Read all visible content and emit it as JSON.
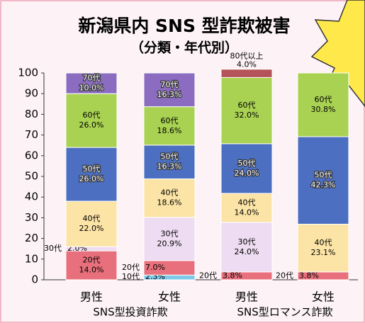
{
  "chart_data": {
    "type": "stacked_bar",
    "title": "新潟県内 SNS 型詐欺被害",
    "subtitle": "（分類・年代別）",
    "categories": [
      "男性",
      "女性",
      "男性",
      "女性"
    ],
    "x_groups": [
      "SNS型投資詐欺",
      "SNS型ロマンス詐欺"
    ],
    "ylim": [
      0,
      100
    ],
    "yticks": [
      0,
      10,
      20,
      30,
      40,
      50,
      60,
      70,
      80,
      90,
      100
    ],
    "series": [
      {
        "name": "10代",
        "color": "#7ec8e8",
        "values": [
          null,
          2.3,
          null,
          null
        ],
        "value_labels": [
          null,
          "2.3%",
          null,
          null
        ]
      },
      {
        "name": "20代",
        "color": "#e8707c",
        "values": [
          14.0,
          7.0,
          3.8,
          3.8
        ],
        "value_labels": [
          "14.0%",
          "7.0%",
          "3.8%",
          "3.8%"
        ]
      },
      {
        "name": "30代",
        "color": "#eedcf2",
        "values": [
          2.0,
          20.9,
          24.0,
          null
        ],
        "value_labels": [
          "2.0%",
          "20.9%",
          "24.0%",
          null
        ]
      },
      {
        "name": "40代",
        "color": "#fce4a6",
        "values": [
          22.0,
          18.6,
          14.0,
          23.1
        ],
        "value_labels": [
          "22.0%",
          "18.6%",
          "14.0%",
          "23.1%"
        ]
      },
      {
        "name": "50代",
        "color": "#4c6fc2",
        "values": [
          26.0,
          16.3,
          24.0,
          42.3
        ],
        "value_labels": [
          "26.0%",
          "16.3%",
          "24.0%",
          "42.3%"
        ]
      },
      {
        "name": "60代",
        "color": "#a9d152",
        "values": [
          26.0,
          18.6,
          32.0,
          30.8
        ],
        "value_labels": [
          "26.0%",
          "18.6%",
          "32.0%",
          "30.8%"
        ]
      },
      {
        "name": "70代",
        "color": "#8b6cc0",
        "values": [
          10.0,
          16.3,
          null,
          null
        ],
        "value_labels": [
          "10.0%",
          "16.3%",
          null,
          null
        ]
      },
      {
        "name": "80代以上",
        "color": "#b4545a",
        "values": [
          null,
          null,
          4.0,
          null
        ],
        "value_labels": [
          null,
          null,
          "4.0%",
          null
        ]
      }
    ]
  }
}
